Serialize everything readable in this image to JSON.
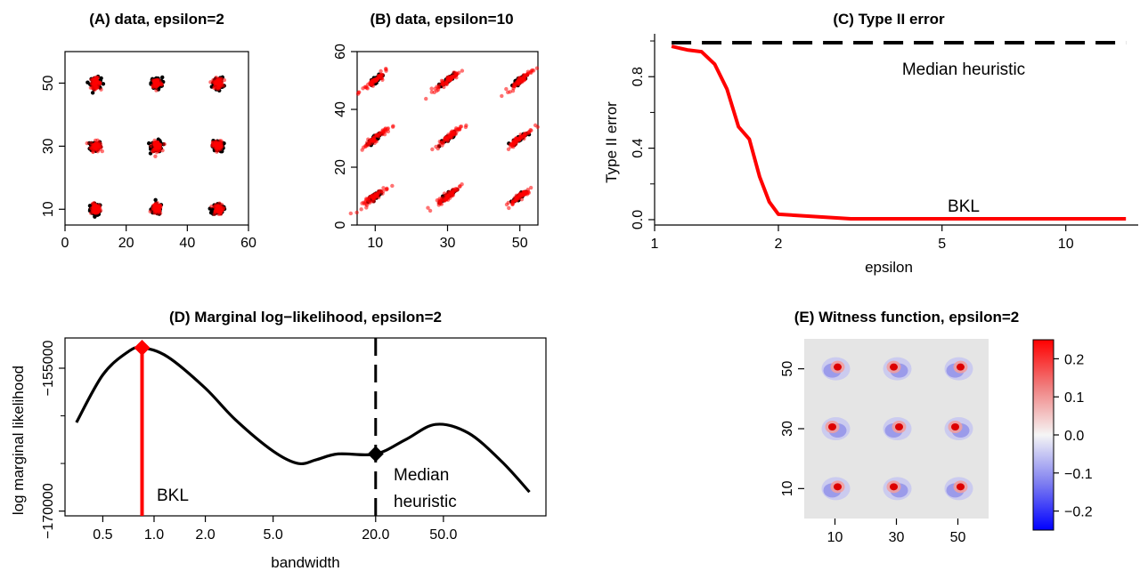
{
  "chart_data": [
    {
      "panel": "A",
      "type": "scatter",
      "title": "(A) data, epsilon=2",
      "xlabel": "",
      "ylabel": "",
      "xlim": [
        0,
        60
      ],
      "ylim": [
        5,
        60
      ],
      "xticks": [
        "0",
        "20",
        "40",
        "60"
      ],
      "yticks": [
        "10",
        "30",
        "50"
      ],
      "centers": [
        10,
        30,
        50
      ],
      "spread": 2,
      "colors": {
        "sample_p": "#000000",
        "sample_q": "#ff0000"
      }
    },
    {
      "panel": "B",
      "type": "scatter",
      "title": "(B) data, epsilon=10",
      "xlabel": "",
      "ylabel": "",
      "xlim": [
        5,
        55
      ],
      "ylim": [
        0,
        60
      ],
      "xticks": [
        "10",
        "30",
        "50"
      ],
      "yticks": [
        "0",
        "20",
        "40",
        "60"
      ],
      "centers": [
        10,
        30,
        50
      ],
      "spread": 10,
      "colors": {
        "sample_p": "#000000",
        "sample_q": "#ff0000"
      }
    },
    {
      "panel": "C",
      "type": "line",
      "title": "(C) Type II error",
      "xlabel": "epsilon",
      "ylabel": "Type II error",
      "x_scale": "log",
      "xlim": [
        1,
        15
      ],
      "ylim": [
        0,
        1
      ],
      "xticks": [
        "1",
        "2",
        "5",
        "10"
      ],
      "yticks": [
        "0.0",
        "0.4",
        "0.8"
      ],
      "series": [
        {
          "name": "Median heuristic",
          "style": "dashed",
          "color": "#000000",
          "x": [
            1.1,
            14
          ],
          "y": [
            0.99,
            0.99
          ]
        },
        {
          "name": "BKL",
          "style": "solid",
          "color": "#ff0000",
          "x": [
            1.1,
            1.2,
            1.3,
            1.4,
            1.5,
            1.6,
            1.7,
            1.8,
            1.9,
            2.0,
            3.0,
            5.0,
            10.0,
            14.0
          ],
          "y": [
            0.97,
            0.95,
            0.94,
            0.87,
            0.73,
            0.52,
            0.45,
            0.24,
            0.1,
            0.03,
            0.005,
            0.005,
            0.005,
            0.005
          ]
        }
      ]
    },
    {
      "panel": "D",
      "type": "line",
      "title": "(D) Marginal log−likelihood, epsilon=2",
      "xlabel": "bandwidth",
      "ylabel": "log marginal likelihood",
      "x_scale": "log",
      "xlim": [
        0.3,
        200
      ],
      "ylim": [
        -170000,
        -152000
      ],
      "xticks": [
        "0.5",
        "1.0",
        "2.0",
        "5.0",
        "20.0",
        "50.0"
      ],
      "yticks": [
        "−155000",
        "−170000"
      ],
      "series": [
        {
          "name": "",
          "style": "solid",
          "color": "#000000",
          "x": [
            0.35,
            0.5,
            0.7,
            0.85,
            1.2,
            2.0,
            3.0,
            5.0,
            7.0,
            9.0,
            12.0,
            20.0,
            30.0,
            45.0,
            70.0,
            110.0,
            160.0
          ],
          "y": [
            -160700,
            -155700,
            -153300,
            -152850,
            -153800,
            -157100,
            -160400,
            -163700,
            -165000,
            -164600,
            -164000,
            -164000,
            -162500,
            -160900,
            -161800,
            -164800,
            -168000
          ]
        }
      ],
      "markers": [
        {
          "label": "BKL",
          "x": 0.85,
          "y": -152850,
          "color": "#ff0000",
          "line": "solid"
        },
        {
          "label": "Median heuristic",
          "x": 20.0,
          "y": -164000,
          "color": "#000000",
          "line": "dashed"
        }
      ]
    },
    {
      "panel": "E",
      "type": "heatmap",
      "title": "(E) Witness function, epsilon=2",
      "xlim": [
        0,
        60
      ],
      "ylim": [
        0,
        60
      ],
      "xticks": [
        "10",
        "30",
        "50"
      ],
      "yticks": [
        "10",
        "30",
        "50"
      ],
      "colorbar_ticks": [
        "0.2",
        "0.1",
        "0.0",
        "−0.1",
        "−0.2"
      ],
      "colorbar_range": [
        -0.25,
        0.25
      ],
      "colors": {
        "positive": "#dd0000",
        "negative": "#1a1aff",
        "background": "#e5e5e5"
      },
      "blobs": [
        {
          "cx": 10,
          "cy": 50,
          "value": 0.22
        },
        {
          "cx": 30,
          "cy": 50,
          "value": 0.2
        },
        {
          "cx": 50,
          "cy": 50,
          "value": 0.2
        },
        {
          "cx": 10,
          "cy": 30,
          "value": 0.18
        },
        {
          "cx": 30,
          "cy": 30,
          "value": 0.15
        },
        {
          "cx": 50,
          "cy": 30,
          "value": 0.15
        },
        {
          "cx": 10,
          "cy": 10,
          "value": 0.2
        },
        {
          "cx": 30,
          "cy": 10,
          "value": 0.22
        },
        {
          "cx": 50,
          "cy": 10,
          "value": 0.2
        }
      ]
    }
  ],
  "annotations": {
    "c_median": "Median heuristic",
    "c_bkl": "BKL",
    "d_bkl": "BKL",
    "d_median_1": "Median",
    "d_median_2": "heuristic"
  }
}
